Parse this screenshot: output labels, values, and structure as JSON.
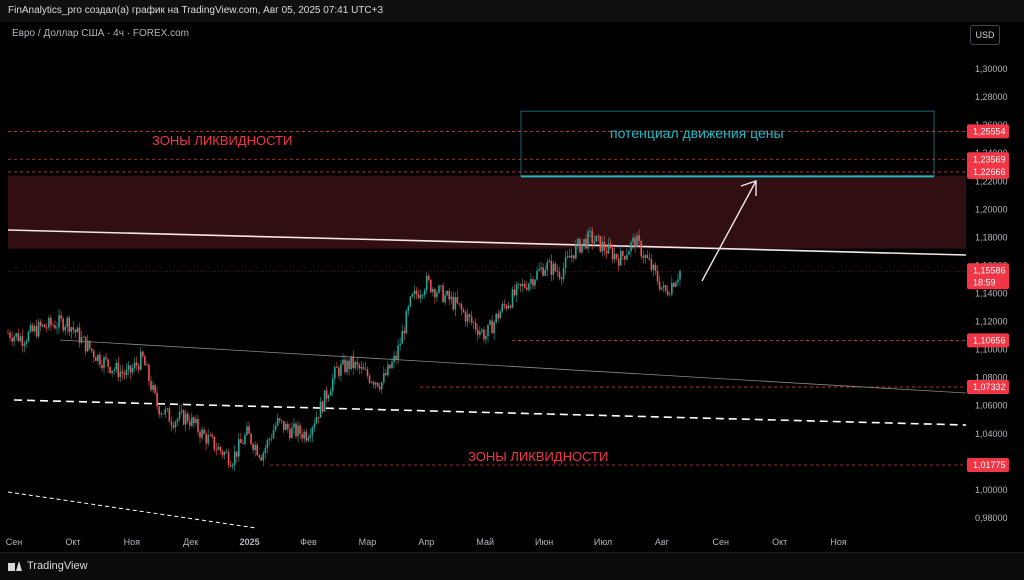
{
  "header": {
    "title": "FinAnalytics_pro создал(а) график на TradingView.com, Авг 05, 2025 07:41 UTC+3"
  },
  "symbol": {
    "label": "Евро / Доллар США · 4ч · FOREX.com"
  },
  "currency_button": "USD",
  "footer": {
    "brand": "TradingView"
  },
  "colors": {
    "bull": "#26a69a",
    "bear": "#ef5350",
    "zone": "#3a1115",
    "level_line": "#c2433f",
    "target_box": "#21b9c6",
    "badge": "#f23645"
  },
  "chart_data": {
    "type": "candlestick",
    "ylim": [
      0.97,
      1.315
    ],
    "y_ticks": [
      "1,30000",
      "1,28000",
      "1,26000",
      "1,24000",
      "1,22000",
      "1,20000",
      "1,18000",
      "1,16000",
      "1,14000",
      "1,12000",
      "1,10000",
      "1,08000",
      "1,06000",
      "1,04000",
      "1,02000",
      "1,00000",
      "0,98000"
    ],
    "x_ticks": [
      "Сен",
      "Окт",
      "Ноя",
      "Дек",
      "2025",
      "Фев",
      "Мар",
      "Апр",
      "Май",
      "Июн",
      "Июл",
      "Авг",
      "Сен",
      "Окт",
      "Ноя"
    ],
    "annotations": {
      "zone_top_label": "ЗОНЫ ЛИКВИДНОСТИ",
      "zone_bottom_label": "ЗОНЫ ЛИКВИДНОСТИ",
      "target_label": "потенциал движения цены"
    },
    "price_levels": [
      {
        "label": "1,25554",
        "value": 1.25554
      },
      {
        "label": "1,23569",
        "value": 1.23569
      },
      {
        "label": "1,22666",
        "value": 1.22666
      },
      {
        "label": "1,10656",
        "value": 1.10656
      },
      {
        "label": "1,07332",
        "value": 1.07332
      },
      {
        "label": "1,01775",
        "value": 1.01775
      }
    ],
    "current_price": {
      "label": "1,15586",
      "timer": "18:59",
      "value": 1.15586
    },
    "liquidity_zone": {
      "from": 1.172,
      "to": 1.224
    },
    "target_zone": {
      "from": 1.2235,
      "to": 1.27
    },
    "price_path": [
      [
        "Сен",
        1.112
      ],
      [
        "Сен",
        1.108
      ],
      [
        "Сен",
        1.115
      ],
      [
        "Окт",
        1.118
      ],
      [
        "Окт",
        1.12
      ],
      [
        "Окт",
        1.106
      ],
      [
        "Окт",
        1.095
      ],
      [
        "Ноя",
        1.087
      ],
      [
        "Ноя",
        1.082
      ],
      [
        "Ноя",
        1.094
      ],
      [
        "Ноя",
        1.06
      ],
      [
        "Дек",
        1.05
      ],
      [
        "Дек",
        1.052
      ],
      [
        "Дек",
        1.04
      ],
      [
        "2025",
        1.03
      ],
      [
        "2025",
        1.022
      ],
      [
        "2025",
        1.04
      ],
      [
        "Фев",
        1.025
      ],
      [
        "Фев",
        1.048
      ],
      [
        "Фев",
        1.042
      ],
      [
        "Мар",
        1.04
      ],
      [
        "Мар",
        1.06
      ],
      [
        "Мар",
        1.085
      ],
      [
        "Мар",
        1.09
      ],
      [
        "Апр",
        1.082
      ],
      [
        "Апр",
        1.076
      ],
      [
        "Апр",
        1.095
      ],
      [
        "Апр",
        1.135
      ],
      [
        "Апр",
        1.148
      ],
      [
        "Май",
        1.14
      ],
      [
        "Май",
        1.132
      ],
      [
        "Май",
        1.12
      ],
      [
        "Май",
        1.11
      ],
      [
        "Май",
        1.128
      ],
      [
        "Июн",
        1.14
      ],
      [
        "Июн",
        1.15
      ],
      [
        "Июн",
        1.16
      ],
      [
        "Июн",
        1.155
      ],
      [
        "Июл",
        1.172
      ],
      [
        "Июл",
        1.18
      ],
      [
        "Июл",
        1.172
      ],
      [
        "Июл",
        1.165
      ],
      [
        "Авг",
        1.178
      ],
      [
        "Авг",
        1.16
      ],
      [
        "Авг",
        1.14
      ],
      [
        "Авг",
        1.156
      ]
    ]
  }
}
